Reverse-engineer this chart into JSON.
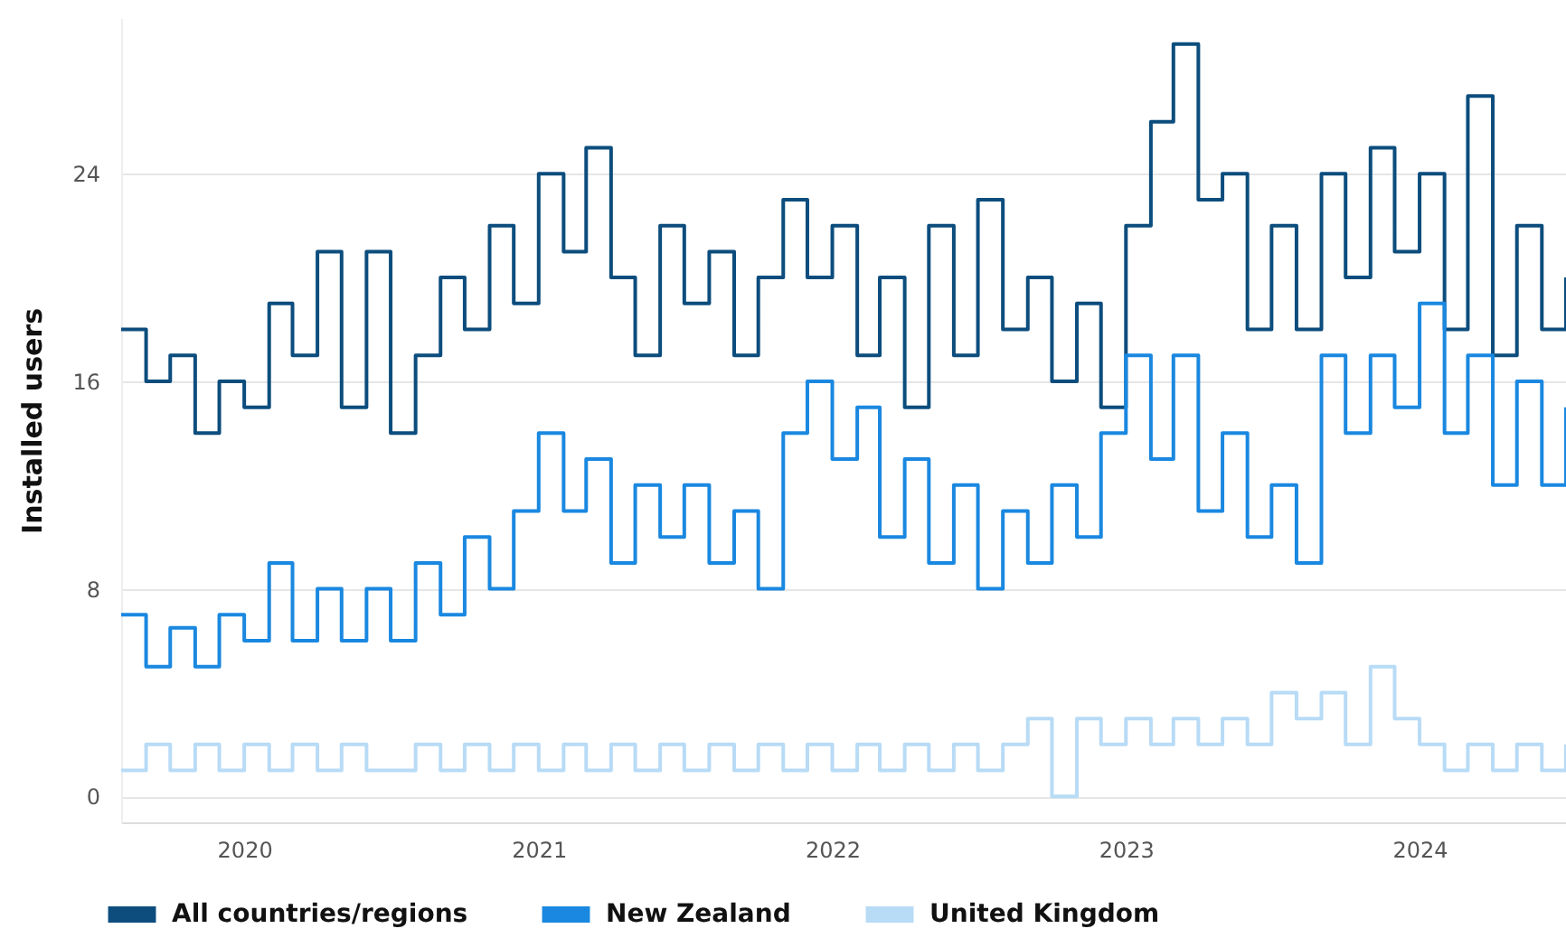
{
  "chart_data": {
    "type": "step",
    "ylabel": "Installed users",
    "xlim": [
      "2019-08",
      "2024-07"
    ],
    "xticks": [
      "2020",
      "2021",
      "2022",
      "2023",
      "2024"
    ],
    "ylim": [
      -1,
      30
    ],
    "yticks": [
      0,
      8,
      16,
      24
    ],
    "grid": "y",
    "legend": "bottom left",
    "x": [
      "2019-08",
      "2019-09",
      "2019-10",
      "2019-11",
      "2019-12",
      "2020-01",
      "2020-02",
      "2020-03",
      "2020-04",
      "2020-05",
      "2020-06",
      "2020-07",
      "2020-08",
      "2020-09",
      "2020-10",
      "2020-11",
      "2020-12",
      "2021-01",
      "2021-02",
      "2021-03",
      "2021-04",
      "2021-05",
      "2021-06",
      "2021-07",
      "2021-08",
      "2021-09",
      "2021-10",
      "2021-11",
      "2021-12",
      "2022-01",
      "2022-02",
      "2022-03",
      "2022-04",
      "2022-05",
      "2022-06",
      "2022-07",
      "2022-08",
      "2022-09",
      "2022-10",
      "2022-11",
      "2022-12",
      "2023-01",
      "2023-02",
      "2023-03",
      "2023-04",
      "2023-05",
      "2023-06",
      "2023-07",
      "2023-08",
      "2023-09",
      "2023-10",
      "2023-11",
      "2023-12",
      "2024-01",
      "2024-02",
      "2024-03",
      "2024-04",
      "2024-05",
      "2024-06",
      "2024-07"
    ],
    "series": [
      {
        "name": "All countries/regions",
        "color": "#0c4d7d",
        "values": [
          18,
          16,
          17,
          14,
          16,
          15,
          19,
          17,
          21,
          15,
          21,
          14,
          17,
          20,
          18,
          22,
          19,
          24,
          21,
          25,
          20,
          17,
          22,
          19,
          21,
          17,
          20,
          23,
          20,
          22,
          17,
          20,
          15,
          22,
          17,
          23,
          18,
          20,
          16,
          19,
          15,
          22,
          26,
          29,
          23,
          24,
          18,
          22,
          18,
          24,
          20,
          25,
          21,
          24,
          18,
          27,
          17,
          22,
          18,
          20
        ]
      },
      {
        "name": "New Zealand",
        "color": "#1a88e0",
        "values": [
          7,
          5,
          6.5,
          5,
          7,
          6,
          9,
          6,
          8,
          6,
          8,
          6,
          9,
          7,
          10,
          8,
          11,
          14,
          11,
          13,
          9,
          12,
          10,
          12,
          9,
          11,
          8,
          14,
          16,
          13,
          15,
          10,
          13,
          9,
          12,
          8,
          11,
          9,
          12,
          10,
          14,
          17,
          13,
          17,
          11,
          14,
          10,
          12,
          9,
          17,
          14,
          17,
          15,
          19,
          14,
          17,
          12,
          16,
          12,
          15
        ]
      },
      {
        "name": "United Kingdom",
        "color": "#b8dbf6",
        "values": [
          1,
          2,
          1,
          2,
          1,
          2,
          1,
          2,
          1,
          2,
          1,
          1,
          2,
          1,
          2,
          1,
          2,
          1,
          2,
          1,
          2,
          1,
          2,
          1,
          2,
          1,
          2,
          1,
          2,
          1,
          2,
          1,
          2,
          1,
          2,
          1,
          2,
          3,
          0,
          3,
          2,
          3,
          2,
          3,
          2,
          3,
          2,
          4,
          3,
          4,
          2,
          5,
          3,
          2,
          1,
          2,
          1,
          2,
          1,
          2
        ]
      }
    ]
  }
}
